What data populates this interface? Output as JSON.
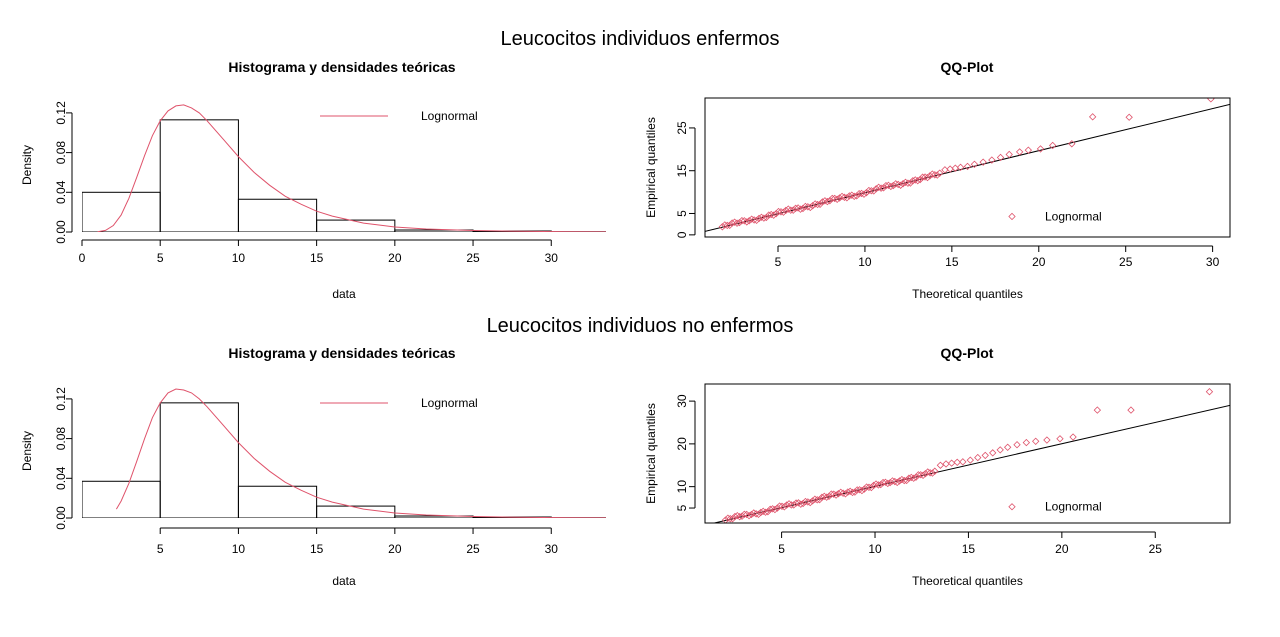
{
  "row_titles": [
    "Leucocitos individuos enfermos",
    "Leucocitos individuos no enfermos"
  ],
  "colors": {
    "density": "#DF536B",
    "qq_points": "#DF536B",
    "line": "#000000",
    "bars": "#000000"
  },
  "chart_data": [
    {
      "type": "bar",
      "title": "Histograma y densidades teóricas",
      "xlabel": "data",
      "ylabel": "Density",
      "xlim": [
        0,
        33.5
      ],
      "ylim": [
        0,
        0.135
      ],
      "xticks": [
        0,
        5,
        10,
        15,
        20,
        25,
        30
      ],
      "yticks": [
        0.0,
        0.04,
        0.08,
        0.12
      ],
      "ytick_labels": [
        "0.00",
        "0.04",
        "0.08",
        "0.12"
      ],
      "bins": [
        [
          0,
          5
        ],
        [
          5,
          10
        ],
        [
          10,
          15
        ],
        [
          15,
          20
        ],
        [
          20,
          25
        ],
        [
          25,
          30
        ],
        [
          30,
          35
        ]
      ],
      "values": [
        0.04,
        0.113,
        0.033,
        0.012,
        0.002,
        0.001,
        0.0003
      ],
      "legend": [
        "Lognormal"
      ],
      "legend_position": "top-right",
      "density": {
        "name": "Lognormal",
        "x": [
          1,
          1.5,
          2,
          2.5,
          3,
          3.5,
          4,
          4.5,
          5,
          5.5,
          6,
          6.5,
          7,
          7.5,
          8,
          9,
          10,
          11,
          12,
          13,
          14,
          15,
          16,
          18,
          20,
          22,
          25,
          28,
          31,
          33.5
        ],
        "y": [
          0.0002,
          0.0016,
          0.0065,
          0.017,
          0.034,
          0.055,
          0.077,
          0.097,
          0.112,
          0.122,
          0.127,
          0.128,
          0.125,
          0.12,
          0.112,
          0.094,
          0.076,
          0.06,
          0.047,
          0.036,
          0.028,
          0.021,
          0.016,
          0.009,
          0.005,
          0.003,
          0.0015,
          0.0007,
          0.0003,
          0.0001
        ]
      }
    },
    {
      "type": "scatter",
      "title": "QQ-Plot",
      "xlabel": "Theoretical quantiles",
      "ylabel": "Empirical quantiles",
      "xlim": [
        0.8,
        31
      ],
      "ylim": [
        -0.5,
        32
      ],
      "xticks": [
        5,
        10,
        15,
        20,
        25,
        30
      ],
      "yticks": [
        0,
        5,
        15,
        25
      ],
      "ytick_labels": [
        "0",
        "5",
        "15",
        "25"
      ],
      "legend": [
        "Lognormal"
      ],
      "legend_position": "bottom-right",
      "reference_line": {
        "x": [
          0.8,
          31
        ],
        "y": [
          0.8,
          30.5
        ]
      },
      "n_core_points": 90,
      "core_range": [
        1.8,
        14.3
      ],
      "points": {
        "x": [
          14.6,
          14.9,
          15.2,
          15.5,
          15.9,
          16.3,
          16.8,
          17.3,
          17.8,
          18.3,
          18.9,
          19.4,
          20.1,
          20.8,
          21.9,
          23.1,
          25.2,
          29.9
        ],
        "y": [
          15.2,
          15.4,
          15.6,
          15.8,
          16.0,
          16.5,
          17.0,
          17.5,
          18.1,
          18.8,
          19.4,
          19.8,
          20.1,
          20.9,
          21.3,
          27.6,
          27.5,
          31.8
        ]
      },
      "legend_point": {
        "x": 18.3,
        "y": 4.3
      }
    },
    {
      "type": "bar",
      "title": "Histograma y densidades teóricas",
      "xlabel": "data",
      "ylabel": "Density",
      "xlim": [
        0,
        33.5
      ],
      "ylim": [
        0,
        0.135
      ],
      "xticks": [
        5,
        10,
        15,
        20,
        25,
        30
      ],
      "yticks": [
        0.0,
        0.04,
        0.08,
        0.12
      ],
      "ytick_labels": [
        "0.00",
        "0.04",
        "0.08",
        "0.12"
      ],
      "bins": [
        [
          0,
          5
        ],
        [
          5,
          10
        ],
        [
          10,
          15
        ],
        [
          15,
          20
        ],
        [
          20,
          25
        ],
        [
          25,
          30
        ],
        [
          30,
          35
        ]
      ],
      "values": [
        0.037,
        0.116,
        0.032,
        0.012,
        0.002,
        0.001,
        0.0003
      ],
      "legend": [
        "Lognormal"
      ],
      "legend_position": "top-right",
      "density": {
        "name": "Lognormal",
        "x": [
          2.2,
          2.5,
          3,
          3.5,
          4,
          4.5,
          5,
          5.5,
          6,
          6.5,
          7,
          7.5,
          8,
          9,
          10,
          11,
          12,
          13,
          14,
          15,
          16,
          18,
          20,
          22,
          25,
          28,
          31,
          33.5
        ],
        "y": [
          0.009,
          0.017,
          0.035,
          0.057,
          0.08,
          0.101,
          0.116,
          0.126,
          0.13,
          0.129,
          0.126,
          0.12,
          0.112,
          0.094,
          0.076,
          0.06,
          0.047,
          0.036,
          0.028,
          0.021,
          0.016,
          0.009,
          0.005,
          0.003,
          0.0015,
          0.0007,
          0.0003,
          0.0001
        ]
      }
    },
    {
      "type": "scatter",
      "title": "QQ-Plot",
      "xlabel": "Theoretical quantiles",
      "ylabel": "Empirical quantiles",
      "xlim": [
        0.9,
        29
      ],
      "ylim": [
        1.5,
        34
      ],
      "xticks": [
        5,
        10,
        15,
        20,
        25
      ],
      "yticks": [
        5,
        10,
        20,
        30
      ],
      "ytick_labels": [
        "5",
        "10",
        "20",
        "30"
      ],
      "legend": [
        "Lognormal"
      ],
      "legend_position": "bottom-right",
      "reference_line": {
        "x": [
          0.9,
          29
        ],
        "y": [
          1.0,
          29.0
        ]
      },
      "n_core_points": 90,
      "core_range": [
        2.0,
        13.2
      ],
      "points": {
        "x": [
          13.5,
          13.8,
          14.1,
          14.4,
          14.7,
          15.1,
          15.5,
          15.9,
          16.3,
          16.7,
          17.1,
          17.6,
          18.1,
          18.6,
          19.2,
          19.9,
          20.6,
          21.9,
          23.7,
          27.9
        ],
        "y": [
          15.0,
          15.3,
          15.5,
          15.7,
          15.8,
          16.2,
          16.8,
          17.3,
          17.9,
          18.6,
          19.2,
          19.8,
          20.3,
          20.6,
          20.9,
          21.2,
          21.6,
          27.9,
          27.9,
          32.2
        ]
      },
      "legend_point": {
        "x": 17.3,
        "y": 5.3
      }
    }
  ]
}
